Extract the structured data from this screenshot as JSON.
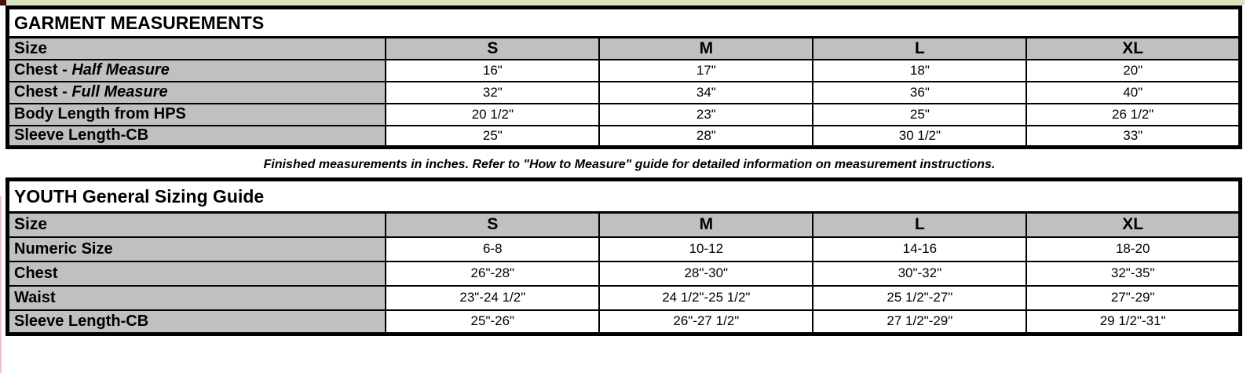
{
  "decor": {
    "corner_color": "#451010",
    "strip_color": "#d9e3c0",
    "left_sliver_color": "#eec2c2"
  },
  "colors": {
    "cell_gray": "#c0c0c0",
    "border_black": "#000000",
    "background": "#ffffff"
  },
  "garment_table": {
    "title": "GARMENT MEASUREMENTS",
    "corner_label": "Size",
    "columns": [
      "S",
      "M",
      "L",
      "XL"
    ],
    "rows": [
      {
        "label": "Chest - ",
        "label_em": "Half Measure",
        "values": [
          "16\"",
          "17\"",
          "18\"",
          "20\""
        ]
      },
      {
        "label": "Chest - ",
        "label_em": "Full Measure",
        "values": [
          "32\"",
          "34\"",
          "36\"",
          "40\""
        ]
      },
      {
        "label": "Body Length from HPS",
        "label_em": "",
        "values": [
          "20 1/2\"",
          "23\"",
          "25\"",
          "26 1/2\""
        ]
      },
      {
        "label": "Sleeve Length-CB",
        "label_em": "",
        "values": [
          "25\"",
          "28\"",
          "30 1/2\"",
          "33\""
        ]
      }
    ]
  },
  "note": "Finished measurements in inches. Refer to \"How to Measure\" guide for detailed information on measurement instructions.",
  "youth_table": {
    "title": "YOUTH General Sizing Guide",
    "corner_label": "Size",
    "columns": [
      "S",
      "M",
      "L",
      "XL"
    ],
    "rows": [
      {
        "label": "Numeric Size",
        "label_em": "",
        "values": [
          "6-8",
          "10-12",
          "14-16",
          "18-20"
        ]
      },
      {
        "label": "Chest",
        "label_em": "",
        "values": [
          "26\"-28\"",
          "28\"-30\"",
          "30\"-32\"",
          "32\"-35\""
        ]
      },
      {
        "label": "Waist",
        "label_em": "",
        "values": [
          "23\"-24 1/2\"",
          "24 1/2\"-25 1/2\"",
          "25 1/2\"-27\"",
          "27\"-29\""
        ]
      },
      {
        "label": "Sleeve Length-CB",
        "label_em": "",
        "values": [
          "25\"-26\"",
          "26\"-27 1/2\"",
          "27 1/2\"-29\"",
          "29 1/2\"-31\""
        ]
      }
    ]
  }
}
